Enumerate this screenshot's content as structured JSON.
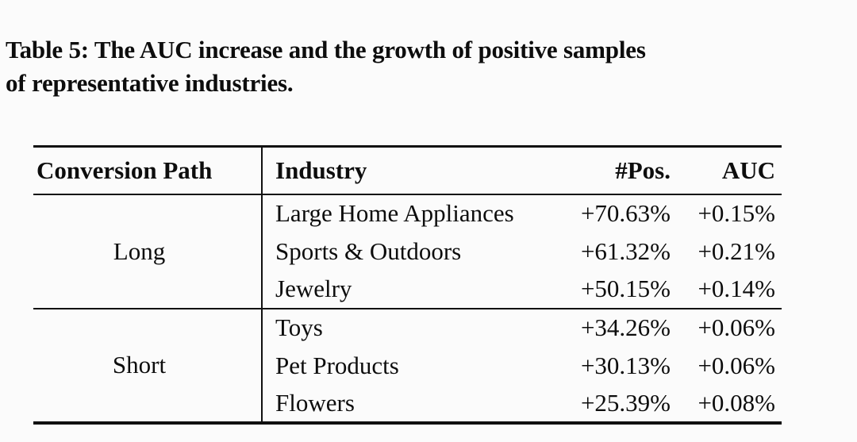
{
  "caption": {
    "lines": [
      "Table 5: The AUC increase and the growth of positive samples",
      "of representative industries."
    ]
  },
  "table": {
    "columns": [
      "Conversion Path",
      "Industry",
      "#Pos.",
      "AUC"
    ],
    "groups": [
      {
        "path": "Long",
        "rows": [
          {
            "industry": "Large Home Appliances",
            "pos": "+70.63%",
            "auc": "+0.15%"
          },
          {
            "industry": "Sports & Outdoors",
            "pos": "+61.32%",
            "auc": "+0.21%"
          },
          {
            "industry": "Jewelry",
            "pos": "+50.15%",
            "auc": "+0.14%"
          }
        ]
      },
      {
        "path": "Short",
        "rows": [
          {
            "industry": "Toys",
            "pos": "+34.26%",
            "auc": "+0.06%"
          },
          {
            "industry": "Pet Products",
            "pos": "+30.13%",
            "auc": "+0.06%"
          },
          {
            "industry": "Flowers",
            "pos": "+25.39%",
            "auc": "+0.08%"
          }
        ]
      }
    ]
  },
  "colors": {
    "text": "#0d0d0d",
    "background": "#fbfbfb",
    "rule": "#101010"
  }
}
